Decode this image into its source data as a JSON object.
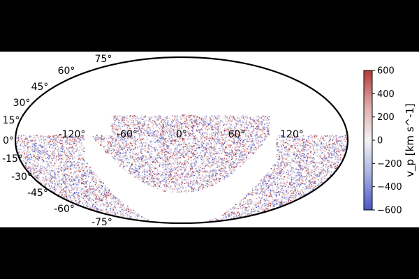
{
  "chart_data": {
    "type": "scatter",
    "projection": "mollweide",
    "grid": false,
    "lat_ticks": [
      "75°",
      "60°",
      "45°",
      "30°",
      "15°",
      "0°",
      "-15°",
      "-30°",
      "-45°",
      "-60°",
      "-75°"
    ],
    "lon_ticks": [
      "-120°",
      "-60°",
      "0°",
      "60°",
      "120°"
    ],
    "colorbar": {
      "label": "v_p [km s^-1]",
      "ticks": [
        "600",
        "400",
        "200",
        "0",
        "−200",
        "−400",
        "−600"
      ],
      "range": [
        -600,
        600
      ],
      "colormap": "blue-white-red (vlag)",
      "low_color": "#4a57c9",
      "mid_color": "#f3f3f3",
      "high_color": "#b43a3a"
    },
    "colors": {
      "page_background": "#000000",
      "panel_background": "#ffffff",
      "ellipse_outline": "#000000"
    }
  }
}
